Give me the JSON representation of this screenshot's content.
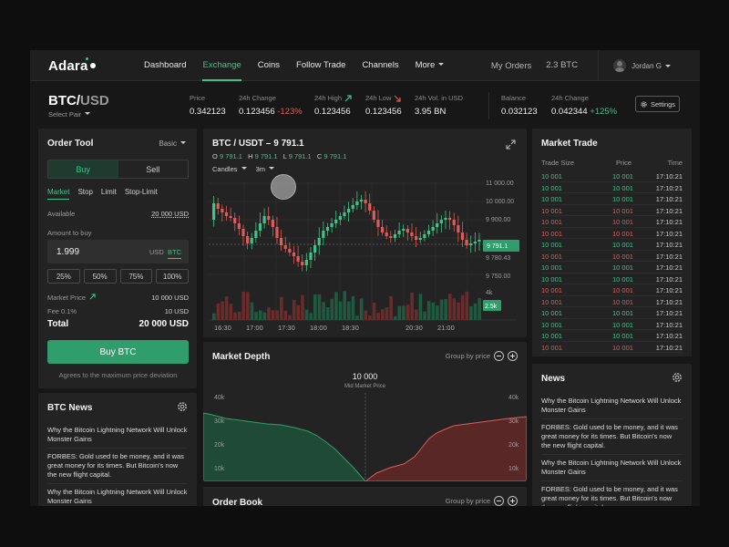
{
  "nav": {
    "brand": "Adara",
    "items": [
      "Dashboard",
      "Exchange",
      "Coins",
      "Follow Trade",
      "Channels",
      "More"
    ],
    "my_orders": "My Orders",
    "balance": "2.3 BTC",
    "user": "Jordan G"
  },
  "ticker": {
    "base": "BTC/",
    "quote": "USD",
    "select_pair": "Select Pair",
    "price_label": "Price",
    "price": "0.342123",
    "change_label": "24h Change",
    "change": "0.123456",
    "change_pct": "-123%",
    "high_label": "24h High",
    "high": "0.123456",
    "low_label": "24h Low",
    "low": "0.123456",
    "vol_label": "24h Vol. in USD",
    "vol": "3.95 BN",
    "balance_label": "Balance",
    "balance": "0.032123",
    "bchange_label": "24h Change",
    "bchange": "0.042344",
    "bchange_pct": "+125%",
    "settings": "Settings"
  },
  "order_tool": {
    "title": "Order Tool",
    "mode": "Basic",
    "buy": "Buy",
    "sell": "Sell",
    "tabs": [
      "Market",
      "Stop",
      "Limit",
      "Stop-Limit"
    ],
    "available_label": "Available",
    "available": "20 000 USD",
    "amount_label": "Amount to buy",
    "amount": "1.999",
    "unit_usd": "USD",
    "unit_btc": "BTC",
    "pcts": [
      "25%",
      "50%",
      "75%",
      "100%"
    ],
    "market_price_label": "Market Price",
    "market_price": "10 000 USD",
    "fee_label": "Fee 0.1%",
    "fee": "10 USD",
    "total_label": "Total",
    "total": "20 000 USD",
    "buy_button": "Buy BTC",
    "note": "Agrees to the maximum price deviation"
  },
  "btc_news": {
    "title": "BTC News",
    "items": [
      "Why the Bitcoin Lightning Network Will Unlock Monster Gains",
      "FORBES: Gold used to be money, and it was great money for its times. But Bitcoin's now the new flight capital.",
      "Why the Bitcoin Lightning Network Will Unlock Monster Gains"
    ]
  },
  "chart": {
    "title": "BTC / USDT – 9 791.1",
    "o": "O",
    "ov": "9 791.1",
    "h": "H",
    "hv": "9 791.1",
    "l": "L",
    "lv": "9 791.1",
    "c": "C",
    "cv": "9 791.1",
    "type_label": "Candles",
    "interval_label": "3m",
    "y_ticks": [
      "11 000.00",
      "10 000.00",
      "9 900.00",
      "9 780.43",
      "9 750.00"
    ],
    "current": "9 791.1",
    "vol_ticks": [
      "4k",
      "2.5k"
    ],
    "x_ticks": [
      "16:30",
      "17:00",
      "17:30",
      "18:00",
      "18:30",
      "20:30",
      "21:00"
    ],
    "colors": {
      "up": "#3cc58a",
      "down": "#e05a56"
    }
  },
  "market_trade": {
    "title": "Market Trade",
    "headers": [
      "Trade Size",
      "Price",
      "Time"
    ],
    "rows": [
      {
        "size": "10 001",
        "price": "10 001",
        "time": "17:10:21",
        "side": "buy"
      },
      {
        "size": "10 001",
        "price": "10 001",
        "time": "17:10:21",
        "side": "buy"
      },
      {
        "size": "10 001",
        "price": "10 001",
        "time": "17:10:21",
        "side": "buy"
      },
      {
        "size": "10 001",
        "price": "10 001",
        "time": "17:10:21",
        "side": "sell"
      },
      {
        "size": "10 001",
        "price": "10 001",
        "time": "17:10:21",
        "side": "sell"
      },
      {
        "size": "10 001",
        "price": "10 001",
        "time": "17:10:21",
        "side": "sell"
      },
      {
        "size": "10 001",
        "price": "10 001",
        "time": "17:10:21",
        "side": "buy"
      },
      {
        "size": "10 001",
        "price": "10 001",
        "time": "17:10:21",
        "side": "sell"
      },
      {
        "size": "10 001",
        "price": "10 001",
        "time": "17:10:21",
        "side": "buy"
      },
      {
        "size": "10 001",
        "price": "10 001",
        "time": "17:10:21",
        "side": "buy"
      },
      {
        "size": "10 001",
        "price": "10 001",
        "time": "17:10:21",
        "side": "sell"
      },
      {
        "size": "10 001",
        "price": "10 001",
        "time": "17:10:21",
        "side": "sell"
      },
      {
        "size": "10 001",
        "price": "10 001",
        "time": "17:10:21",
        "side": "buy"
      },
      {
        "size": "10 001",
        "price": "10 001",
        "time": "17:10:21",
        "side": "buy"
      },
      {
        "size": "10 001",
        "price": "10 001",
        "time": "17:10:21",
        "side": "buy"
      },
      {
        "size": "10 001",
        "price": "10 001",
        "time": "17:10:21",
        "side": "sell"
      },
      {
        "size": "10 001",
        "price": "10 001",
        "time": "17:10:21",
        "side": "sell"
      }
    ]
  },
  "market_depth": {
    "title": "Market Depth",
    "group_by": "Group by price",
    "mid_price": "10 000",
    "mid_label": "Mid Market Price",
    "y_ticks": [
      "40k",
      "30k",
      "20k",
      "10k"
    ]
  },
  "order_book": {
    "title": "Order Book",
    "group_by": "Group by price"
  },
  "news": {
    "title": "News",
    "items": [
      "Why the Bitcoin Lightning Network Will Unlock Monster Gains",
      "FORBES: Gold used to be money, and it was great money for its times. But Bitcoin's now the new flight capital.",
      "Why the Bitcoin Lightning Network Will Unlock Monster Gains",
      "FORBES: Gold used to be money, and it was great money for its times. But Bitcoin's now the new flight capital."
    ]
  }
}
